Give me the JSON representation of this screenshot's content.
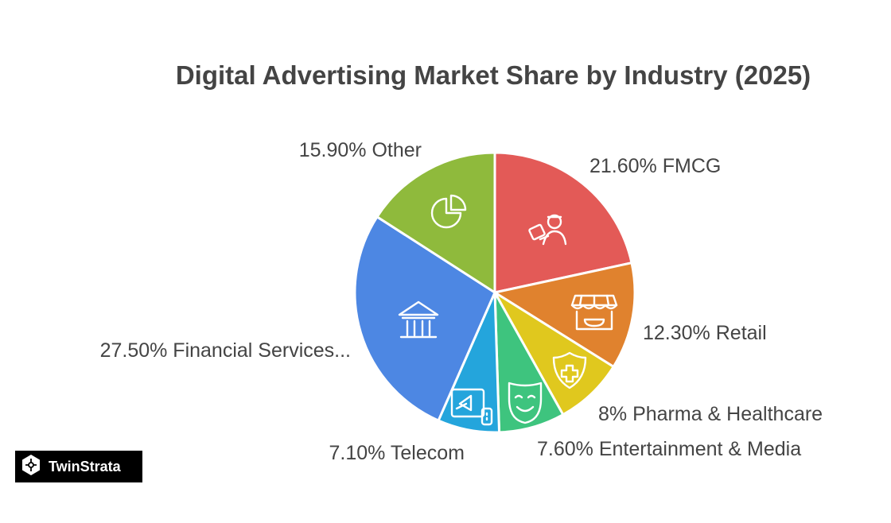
{
  "chart_data": {
    "type": "pie",
    "title": "Digital Advertising Market Share by Industry (2025)",
    "start_angle_deg": -90,
    "slices": [
      {
        "label": "21.60% FMCG",
        "value": 21.6,
        "color": "#e35a57",
        "icon": "delivery-person-icon"
      },
      {
        "label": "12.30% Retail",
        "value": 12.3,
        "color": "#e0822e",
        "icon": "storefront-icon"
      },
      {
        "label": "8% Pharma & Healthcare",
        "value": 8.0,
        "color": "#e0c81e",
        "icon": "health-shield-icon"
      },
      {
        "label": "7.60% Entertainment & Media",
        "value": 7.6,
        "color": "#3ec47e",
        "icon": "theater-mask-icon"
      },
      {
        "label": "7.10% Telecom",
        "value": 7.1,
        "color": "#24a5dc",
        "icon": "megaphone-phone-icon"
      },
      {
        "label": "27.50% Financial Services...",
        "value": 27.5,
        "color": "#4d87e3",
        "icon": "bank-icon"
      },
      {
        "label": "15.90% Other",
        "value": 15.9,
        "color": "#8fba3c",
        "icon": "pie-chart-icon"
      }
    ]
  },
  "brand": {
    "name": "TwinStrata",
    "icon": "twinstrata-logo-icon"
  }
}
